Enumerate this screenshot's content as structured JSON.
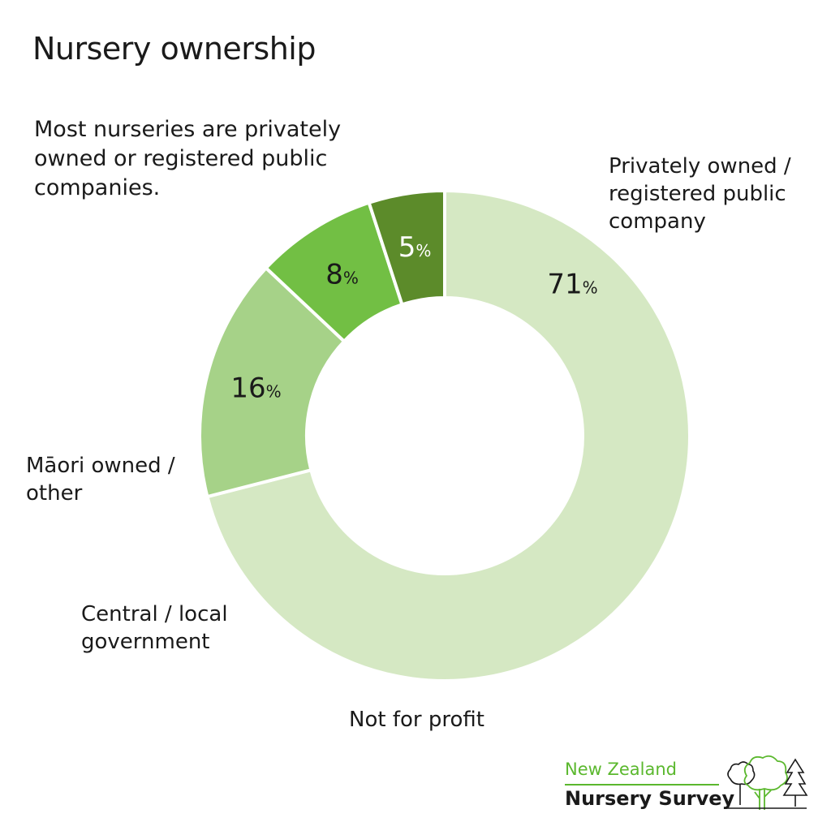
{
  "title": "Nursery ownership",
  "subtitle": "Most nurseries are privately owned or registered public companies.",
  "brand": {
    "line1": "New Zealand",
    "line2": "Nursery Survey",
    "logo_icon": "trees-icon"
  },
  "chart_data": {
    "type": "pie",
    "donut": true,
    "start_angle_deg": 270,
    "direction": "clockwise",
    "slices": [
      {
        "label": "Privately owned / registered public company",
        "value": 71,
        "display": "71",
        "unit": "%",
        "color": "#d5e8c3",
        "text_color": "#1a1a1a"
      },
      {
        "label": "Not for profit",
        "value": 16,
        "display": "16",
        "unit": "%",
        "color": "#a6d288",
        "text_color": "#1a1a1a"
      },
      {
        "label": "Central / local government",
        "value": 8,
        "display": "8",
        "unit": "%",
        "color": "#72bf44",
        "text_color": "#1a1a1a"
      },
      {
        "label": "Māori owned / other",
        "value": 5,
        "display": "5",
        "unit": "%",
        "color": "#5c8b2a",
        "text_color": "#ffffff"
      }
    ]
  }
}
